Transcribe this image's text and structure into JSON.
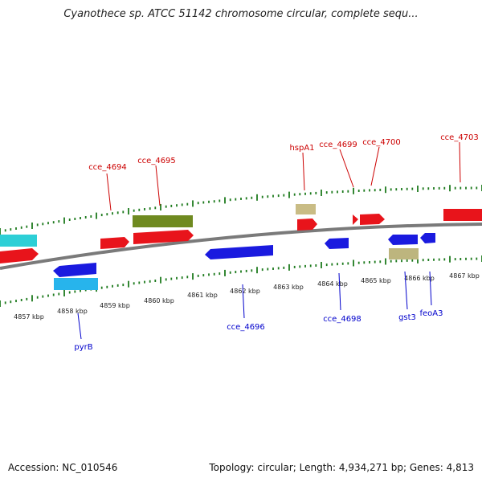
{
  "title": "Cyanothece sp. ATCC 51142 chromosome circular, complete sequ...",
  "footer": {
    "accession": "Accession: NC_010546",
    "topology": "Topology: circular; Length: 4,934,271 bp; Genes: 4,813"
  },
  "colors": {
    "forward_cds": "#e8141b",
    "reverse_cds": "#1a1adf",
    "forward_rna": "#2dcfd6",
    "reverse_rna": "#27b4ec",
    "forward_misc": "#6f8a20",
    "reverse_misc": "#bdb57e",
    "misc_light": "#c9bc85",
    "forward_label": "#cc0000",
    "reverse_label": "#0000cc",
    "tick": "#1d7a1d",
    "backbone": "#7a7a7a"
  },
  "kbp_labels": [
    "4857 kbp",
    "4858 kbp",
    "4859 kbp",
    "4860 kbp",
    "4861 kbp",
    "4862 kbp",
    "4863 kbp",
    "4864 kbp",
    "4865 kbp",
    "4866 kbp",
    "4867 kbp"
  ],
  "forward_labels": [
    "cce_4694",
    "cce_4695",
    "hspA1",
    "cce_4699",
    "cce_4700",
    "cce_4703"
  ],
  "reverse_labels": [
    "pyrB",
    "cce_4696",
    "cce_4698",
    "gst3",
    "feoA3"
  ]
}
